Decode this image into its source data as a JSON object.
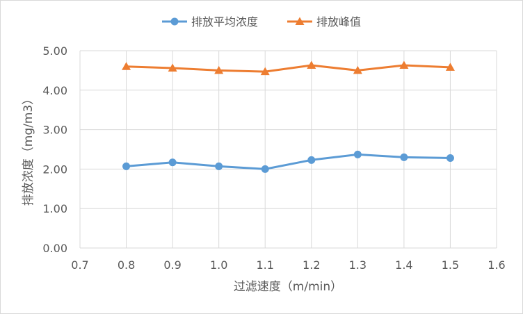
{
  "chart_data": {
    "type": "line",
    "title": "",
    "xlabel": "过滤速度（m/min）",
    "ylabel": "排放浓度（mg/m3）",
    "xlim": [
      0.7,
      1.6
    ],
    "ylim": [
      0,
      5
    ],
    "x_ticks": [
      "0.7",
      "0.8",
      "0.9",
      "1.0",
      "1.1",
      "1.2",
      "1.3",
      "1.4",
      "1.5",
      "1.6"
    ],
    "y_ticks": [
      "0.00",
      "1.00",
      "2.00",
      "3.00",
      "4.00",
      "5.00"
    ],
    "grid": "vertical and horizontal",
    "legend_position": "top",
    "x": [
      0.8,
      0.9,
      1.0,
      1.1,
      1.2,
      1.3,
      1.4,
      1.5
    ],
    "series": [
      {
        "name": "排放平均浓度",
        "marker": "circle",
        "color": "#5b9bd5",
        "values": [
          2.07,
          2.17,
          2.07,
          2.0,
          2.23,
          2.37,
          2.3,
          2.28
        ]
      },
      {
        "name": "排放峰值",
        "marker": "triangle",
        "color": "#ed7d31",
        "values": [
          4.6,
          4.56,
          4.5,
          4.47,
          4.63,
          4.5,
          4.63,
          4.58
        ]
      }
    ]
  }
}
